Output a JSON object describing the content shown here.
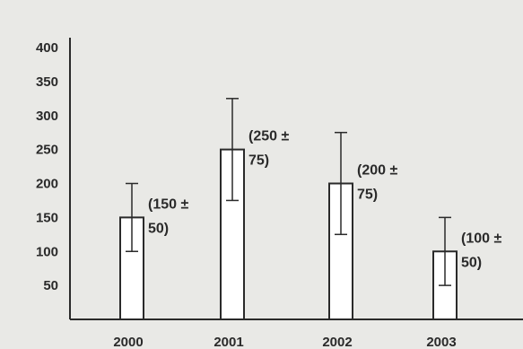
{
  "chart_data": {
    "type": "bar",
    "title": "",
    "xlabel": "",
    "ylabel": "",
    "categories": [
      "2000",
      "2001",
      "2002",
      "2003"
    ],
    "values": [
      150,
      250,
      200,
      100
    ],
    "errors": [
      50,
      75,
      75,
      50
    ],
    "yticks": [
      "50",
      "100",
      "150",
      "200",
      "250",
      "300",
      "350",
      "400"
    ],
    "ylim": [
      0,
      400
    ],
    "grid": false,
    "data_labels": [
      [
        "(150 ±",
        "50)"
      ],
      [
        "(250 ±",
        "75)"
      ],
      [
        "(200 ±",
        "75)"
      ],
      [
        "(100 ±",
        "50)"
      ]
    ],
    "colors": {
      "bar_fill": "#ffffff",
      "stroke": "#2a2a2a",
      "background": "#e9e9e6"
    }
  }
}
